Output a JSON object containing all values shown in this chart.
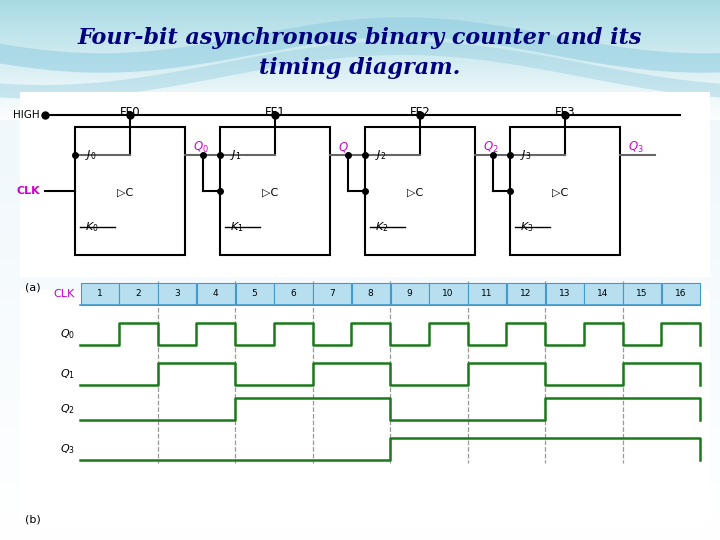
{
  "title_line1": "Four-bit asynchronous binary counter and its",
  "title_line2": "timing diagram.",
  "title_fontsize": 16,
  "title_color": "#000080",
  "ff_labels": [
    "FF0",
    "FF1",
    "FF2",
    "FF3"
  ],
  "q_labels_disp": [
    "$Q_0$",
    "$Q$",
    "$Q_2$",
    "$Q_3$"
  ],
  "clk_color": "#cc00cc",
  "q_color": "#cc00cc",
  "timing_green": "#1a7a1a",
  "dashed_color": "#999999",
  "clk_box_fill": "#b8dff0",
  "clk_box_edge": "#4499cc",
  "num_cycles": 16,
  "dashed_at_clk": [
    2,
    4,
    6,
    8,
    10,
    12,
    14
  ]
}
